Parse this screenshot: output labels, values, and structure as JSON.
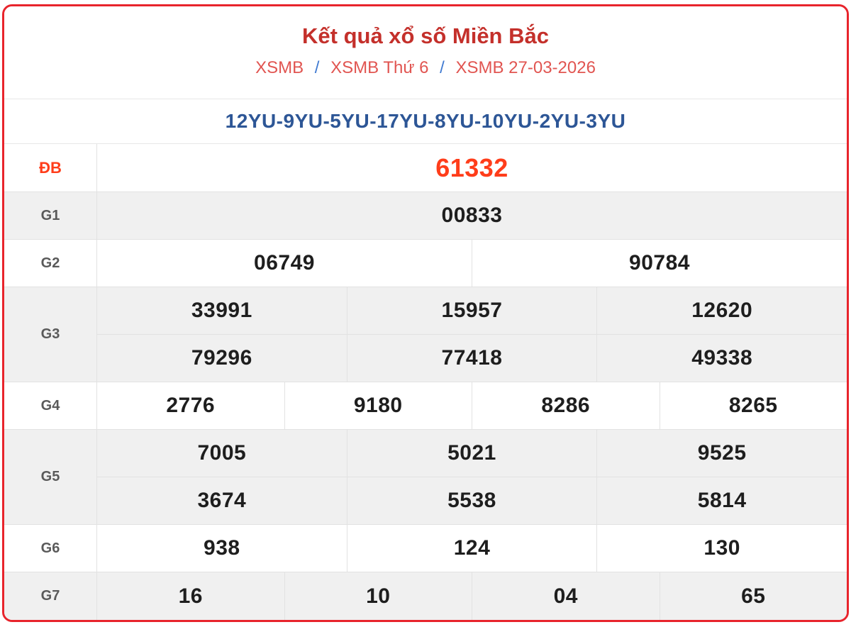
{
  "page": {
    "title": "Kết quả xổ số Miền Bắc",
    "breadcrumb": {
      "separator": "/",
      "items": [
        "XSMB",
        "XSMB Thứ 6",
        "XSMB 27-03-2026"
      ]
    },
    "loto_line": "12YU-9YU-5YU-17YU-8YU-10YU-2YU-3YU"
  },
  "colors": {
    "card_border_red": "#e8242c",
    "title_red": "#c4302b",
    "breadcrumb_red": "#e15551",
    "breadcrumb_slash_blue": "#3f7ad1",
    "loto_navy": "#2d5696",
    "special_prize_red": "#ff3d1a",
    "label_gray": "#5a5a5a",
    "value_black": "#1e1e1e",
    "alt_row_bg": "#f0f0f0",
    "grid_line": "#e2e2e2"
  },
  "prizes": [
    {
      "label": "ĐB",
      "rows": [
        [
          "61332"
        ]
      ]
    },
    {
      "label": "G1",
      "rows": [
        [
          "00833"
        ]
      ]
    },
    {
      "label": "G2",
      "rows": [
        [
          "06749",
          "90784"
        ]
      ]
    },
    {
      "label": "G3",
      "rows": [
        [
          "33991",
          "15957",
          "12620"
        ],
        [
          "79296",
          "77418",
          "49338"
        ]
      ]
    },
    {
      "label": "G4",
      "rows": [
        [
          "2776",
          "9180",
          "8286",
          "8265"
        ]
      ]
    },
    {
      "label": "G5",
      "rows": [
        [
          "7005",
          "5021",
          "9525"
        ],
        [
          "3674",
          "5538",
          "5814"
        ]
      ]
    },
    {
      "label": "G6",
      "rows": [
        [
          "938",
          "124",
          "130"
        ]
      ]
    },
    {
      "label": "G7",
      "rows": [
        [
          "16",
          "10",
          "04",
          "65"
        ]
      ]
    }
  ]
}
